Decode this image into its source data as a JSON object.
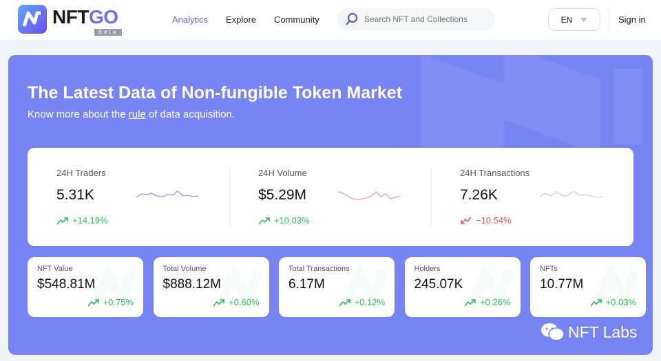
{
  "header": {
    "brand_main": "NFT",
    "brand_accent": "GO",
    "beta": "Beta",
    "nav": [
      {
        "label": "Analytics",
        "active": true
      },
      {
        "label": "Explore"
      },
      {
        "label": "Community"
      }
    ],
    "search": {
      "placeholder": "Search NFT and Collections",
      "icon": "search-icon"
    },
    "language": "EN",
    "signin": "Sign in"
  },
  "banner": {
    "title": "The Latest Data of Non-fungible Token Market",
    "subtitle_pre": "Know more about the ",
    "subtitle_link": "rule",
    "subtitle_post": " of data acquisition.",
    "color": "#7784f4"
  },
  "stats24h": [
    {
      "label": "24H Traders",
      "value": "5.31K",
      "change": "+14.19%",
      "trend": "up",
      "spark_color": "#8f96e6"
    },
    {
      "label": "24H Volume",
      "value": "$5.29M",
      "change": "+10.03%",
      "trend": "up",
      "spark_color": "#f0a0a0"
    },
    {
      "label": "24H Transactions",
      "value": "7.26K",
      "change": "−10.54%",
      "trend": "down",
      "spark_color": "#cfcfd6"
    }
  ],
  "totals": [
    {
      "label": "NFT Value",
      "value": "$548.81M",
      "change": "+0.75%"
    },
    {
      "label": "Total Volume",
      "value": "$888.12M",
      "change": "+0.60%"
    },
    {
      "label": "Total Transactions",
      "value": "6.17M",
      "change": "+0.12%"
    },
    {
      "label": "Holders",
      "value": "245.07K",
      "change": "+0.26%"
    },
    {
      "label": "NFTs",
      "value": "10.77M",
      "change": "+0.03%"
    }
  ],
  "watermark": "NFT Labs",
  "colors": {
    "up": "#2fbf55",
    "down": "#e25555",
    "accent": "#5b66d6"
  }
}
